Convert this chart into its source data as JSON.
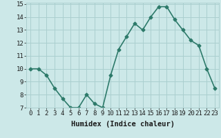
{
  "x": [
    0,
    1,
    2,
    3,
    4,
    5,
    6,
    7,
    8,
    9,
    10,
    11,
    12,
    13,
    14,
    15,
    16,
    17,
    18,
    19,
    20,
    21,
    22,
    23
  ],
  "y": [
    10,
    10,
    9.5,
    8.5,
    7.7,
    7.0,
    7.0,
    8.0,
    7.3,
    7.0,
    9.5,
    11.5,
    12.5,
    13.5,
    13.0,
    14.0,
    14.8,
    14.8,
    13.8,
    13.0,
    12.2,
    11.8,
    10.0,
    8.5
  ],
  "line_color": "#2d7a6a",
  "bg_color": "#cce8e8",
  "grid_color": "#aacfcf",
  "xlabel": "Humidex (Indice chaleur)",
  "ylim": [
    7,
    15
  ],
  "xlim": [
    -0.5,
    23.5
  ],
  "yticks": [
    7,
    8,
    9,
    10,
    11,
    12,
    13,
    14,
    15
  ],
  "xticks": [
    0,
    1,
    2,
    3,
    4,
    5,
    6,
    7,
    8,
    9,
    10,
    11,
    12,
    13,
    14,
    15,
    16,
    17,
    18,
    19,
    20,
    21,
    22,
    23
  ],
  "xtick_labels": [
    "0",
    "1",
    "2",
    "3",
    "4",
    "5",
    "6",
    "7",
    "8",
    "9",
    "10",
    "11",
    "12",
    "13",
    "14",
    "15",
    "16",
    "17",
    "18",
    "19",
    "20",
    "21",
    "22",
    "23"
  ],
  "marker": "D",
  "marker_size": 2.5,
  "line_width": 1.2,
  "font_size_label": 7.5,
  "font_size_tick": 6.5
}
